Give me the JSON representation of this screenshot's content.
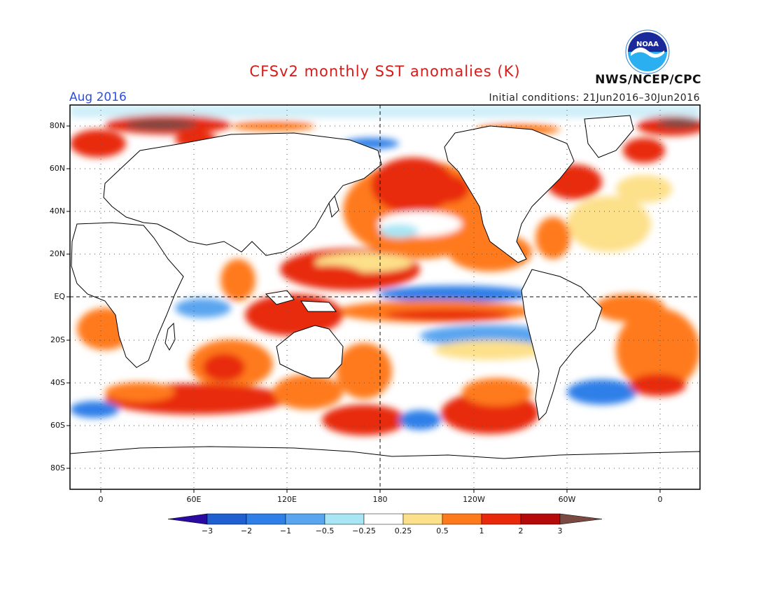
{
  "header": {
    "title": "CFSv2 monthly SST anomalies (K)",
    "month": "Aug 2016",
    "initial_conditions": "Initial conditions: 21Jun2016–30Jun2016",
    "agency": "NWS/NCEP/CPC",
    "logo_text": "NOAA"
  },
  "map": {
    "lat_labels": [
      "80N",
      "60N",
      "40N",
      "20N",
      "EQ",
      "20S",
      "40S",
      "60S",
      "80S"
    ],
    "lon_labels": [
      "0",
      "60E",
      "120E",
      "180",
      "120W",
      "60W",
      "0"
    ],
    "equator_line": "dashed",
    "dateline": "dashed"
  },
  "colorbar": {
    "labels": [
      "−3",
      "−2",
      "−1",
      "−0.5",
      "−0.25",
      "0.25",
      "0.5",
      "1",
      "2",
      "3"
    ],
    "colors": [
      "#2a0aa0",
      "#1f5fd0",
      "#2f7fe8",
      "#5aa5f0",
      "#a8e6f5",
      "#ffffff",
      "#fde08a",
      "#ff7a1a",
      "#e8290a",
      "#b40a0a",
      "#7a4a42"
    ]
  }
}
